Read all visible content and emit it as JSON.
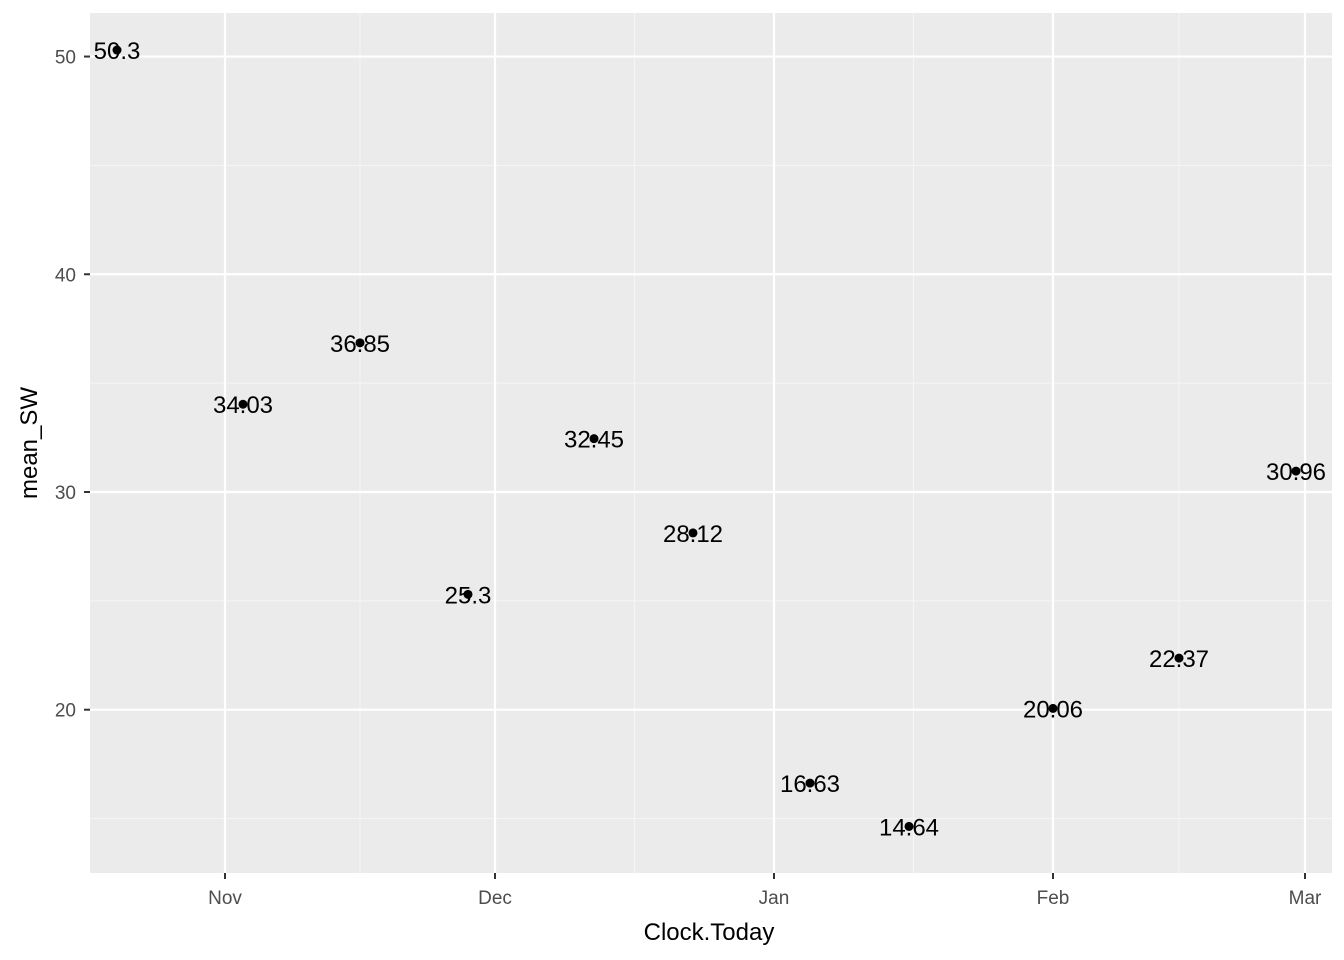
{
  "chart_data": {
    "type": "scatter",
    "title": "",
    "xlabel": "Clock.Today",
    "ylabel": "mean_SW",
    "x_tick_dates": [
      "2020-11-01",
      "2020-12-01",
      "2021-01-01",
      "2021-02-01",
      "2021-03-01"
    ],
    "x_tick_labels": [
      "Nov",
      "Dec",
      "Jan",
      "Feb",
      "Mar"
    ],
    "x_range": [
      "2020-10-17",
      "2021-03-04"
    ],
    "y_ticks": [
      20,
      30,
      40,
      50
    ],
    "y_tick_labels": [
      "20",
      "30",
      "40",
      "50"
    ],
    "ylim": [
      12.5,
      52.0
    ],
    "grid": true,
    "points": [
      {
        "x": "2020-10-20",
        "y": 50.3,
        "label": "50.3"
      },
      {
        "x": "2020-11-03",
        "y": 34.03,
        "label": "34.03"
      },
      {
        "x": "2020-11-16",
        "y": 36.85,
        "label": "36.85"
      },
      {
        "x": "2020-11-28",
        "y": 25.3,
        "label": "25.3"
      },
      {
        "x": "2020-12-12",
        "y": 32.45,
        "label": "32.45"
      },
      {
        "x": "2020-12-23",
        "y": 28.12,
        "label": "28.12"
      },
      {
        "x": "2021-01-05",
        "y": 16.63,
        "label": "16.63"
      },
      {
        "x": "2021-01-16",
        "y": 14.64,
        "label": "14.64"
      },
      {
        "x": "2021-02-01",
        "y": 20.06,
        "label": "20.06"
      },
      {
        "x": "2021-02-15",
        "y": 22.37,
        "label": "22.37"
      },
      {
        "x": "2021-02-28",
        "y": 30.96,
        "label": "30.96"
      }
    ],
    "colors": {
      "panel_background": "#EBEBEB",
      "grid_major": "#FFFFFF",
      "grid_minor": "#F5F5F5",
      "point": "#000000",
      "tick_text": "#4D4D4D",
      "tick_mark": "#333333"
    }
  }
}
